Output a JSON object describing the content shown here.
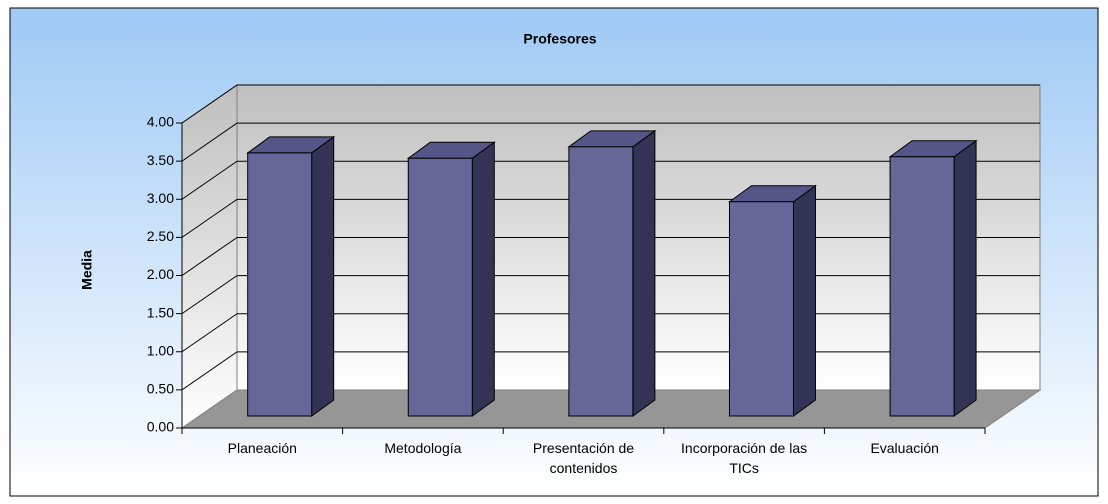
{
  "chart_data": {
    "type": "bar3d",
    "title": "Profesores",
    "y_label": "Media",
    "categories": [
      "Planeación",
      "Metodología",
      "Presentación de contenidos",
      "Incorporación de las TICs",
      "Evaluación"
    ],
    "values": [
      3.45,
      3.38,
      3.53,
      2.81,
      3.4
    ],
    "color": "#666699",
    "ylim": [
      0,
      4
    ],
    "yticks": [
      {
        "value": 0,
        "label": "0.00"
      },
      {
        "value": 0.5,
        "label": "0.50"
      },
      {
        "value": 1,
        "label": "1.00"
      },
      {
        "value": 1.5,
        "label": "1.50"
      },
      {
        "value": 2,
        "label": "2.00"
      },
      {
        "value": 2.5,
        "label": "2.50"
      },
      {
        "value": 3,
        "label": "3.00"
      },
      {
        "value": 3.5,
        "label": "3.50"
      },
      {
        "value": 4,
        "label": "4.00"
      }
    ],
    "grid": true
  }
}
